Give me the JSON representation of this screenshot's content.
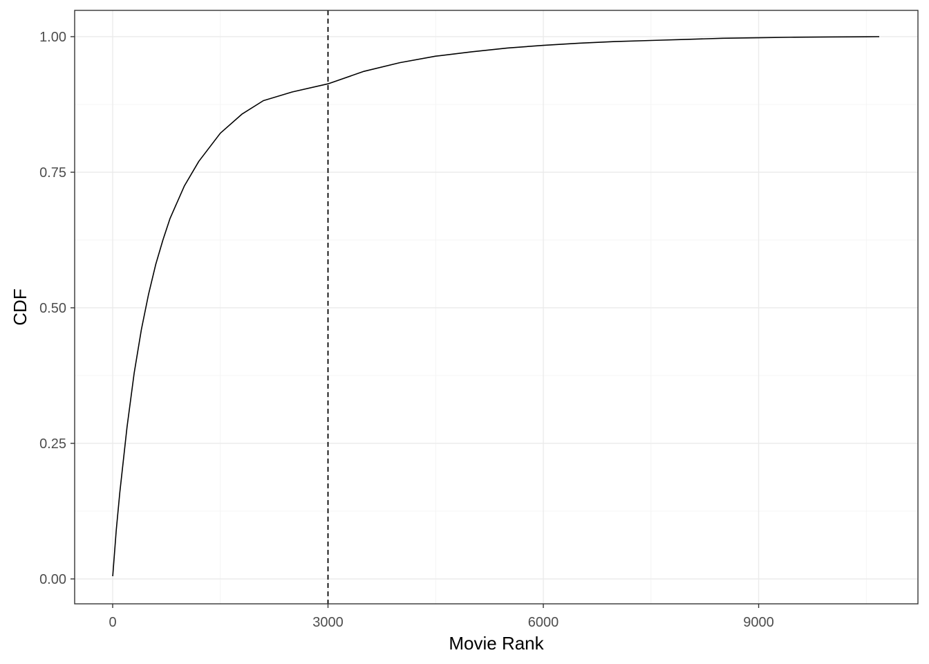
{
  "chart_data": {
    "type": "line",
    "title": "",
    "xlabel": "Movie Rank",
    "ylabel": "CDF",
    "xlim": [
      -1,
      10700
    ],
    "ylim": [
      0,
      1
    ],
    "x_ticks": [
      0,
      3000,
      6000,
      9000
    ],
    "x_tick_labels": [
      "0",
      "3000",
      "6000",
      "9000"
    ],
    "y_ticks": [
      0,
      0.25,
      0.5,
      0.75,
      1
    ],
    "y_tick_labels": [
      "0.00",
      "0.25",
      "0.50",
      "0.75",
      "1.00"
    ],
    "grid": true,
    "legend": "none",
    "vline": {
      "x": 3000,
      "style": "dashed"
    },
    "series": [
      {
        "x": [
          1,
          50,
          100,
          150,
          200,
          300,
          400,
          500,
          600,
          700,
          800,
          1000,
          1200,
          1500,
          1800,
          2100,
          2500,
          3000,
          3500,
          4000,
          4500,
          5000,
          5500,
          6000,
          6500,
          7000,
          7500,
          8000,
          8500,
          9000,
          9500,
          10000,
          10500,
          10680
        ],
        "y": [
          0.005,
          0.09,
          0.16,
          0.22,
          0.28,
          0.38,
          0.46,
          0.525,
          0.58,
          0.625,
          0.665,
          0.725,
          0.77,
          0.822,
          0.857,
          0.882,
          0.898,
          0.913,
          0.936,
          0.952,
          0.964,
          0.972,
          0.979,
          0.984,
          0.988,
          0.991,
          0.993,
          0.995,
          0.997,
          0.998,
          0.999,
          0.9995,
          0.9998,
          1.0
        ]
      }
    ]
  }
}
